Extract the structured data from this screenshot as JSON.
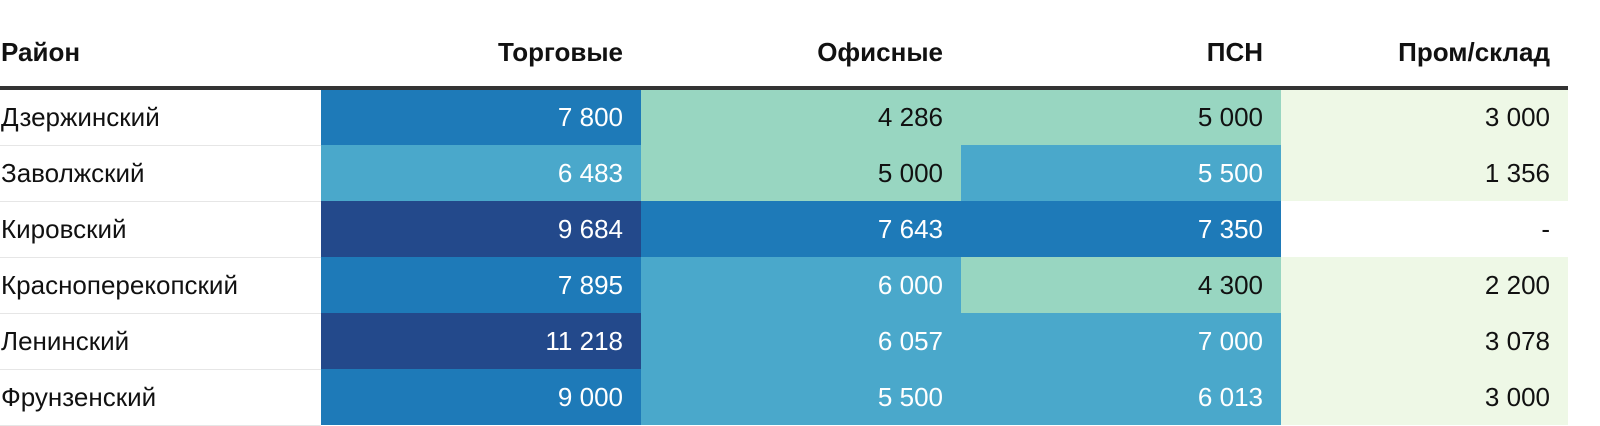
{
  "chart_data": {
    "type": "table",
    "columns": [
      "Район",
      "Торговые",
      "Офисные",
      "ПСН",
      "Пром/склад"
    ],
    "rows": [
      {
        "district": "Дзержинский",
        "values": [
          "7 800",
          "4 286",
          "5 000",
          "3 000"
        ]
      },
      {
        "district": "Заволжский",
        "values": [
          "6 483",
          "5 000",
          "5 500",
          "1 356"
        ]
      },
      {
        "district": "Кировский",
        "values": [
          "9 684",
          "7 643",
          "7 350",
          "-"
        ]
      },
      {
        "district": "Красноперекопский",
        "values": [
          "7 895",
          "6 000",
          "4 300",
          "2 200"
        ]
      },
      {
        "district": "Ленинский",
        "values": [
          "11 218",
          "6 057",
          "7 000",
          "3 078"
        ]
      },
      {
        "district": "Фрунзенский",
        "values": [
          "9 000",
          "5 500",
          "6 013",
          "3 000"
        ]
      }
    ],
    "color_scale": {
      "lightest": "#eef8e6",
      "light": "#98d6c1",
      "mid": "#4aa8cb",
      "dark": "#1e7ab8",
      "darkest": "#23498b",
      "empty": "#ffffff"
    },
    "cell_colors": [
      [
        "#1e7ab8",
        "#98d6c1",
        "#98d6c1",
        "#eef8e6"
      ],
      [
        "#4aa8cb",
        "#98d6c1",
        "#4aa8cb",
        "#eef8e6"
      ],
      [
        "#23498b",
        "#1e7ab8",
        "#1e7ab8",
        "#ffffff"
      ],
      [
        "#1e7ab8",
        "#4aa8cb",
        "#98d6c1",
        "#eef8e6"
      ],
      [
        "#23498b",
        "#4aa8cb",
        "#4aa8cb",
        "#eef8e6"
      ],
      [
        "#1e7ab8",
        "#4aa8cb",
        "#4aa8cb",
        "#eef8e6"
      ]
    ]
  }
}
